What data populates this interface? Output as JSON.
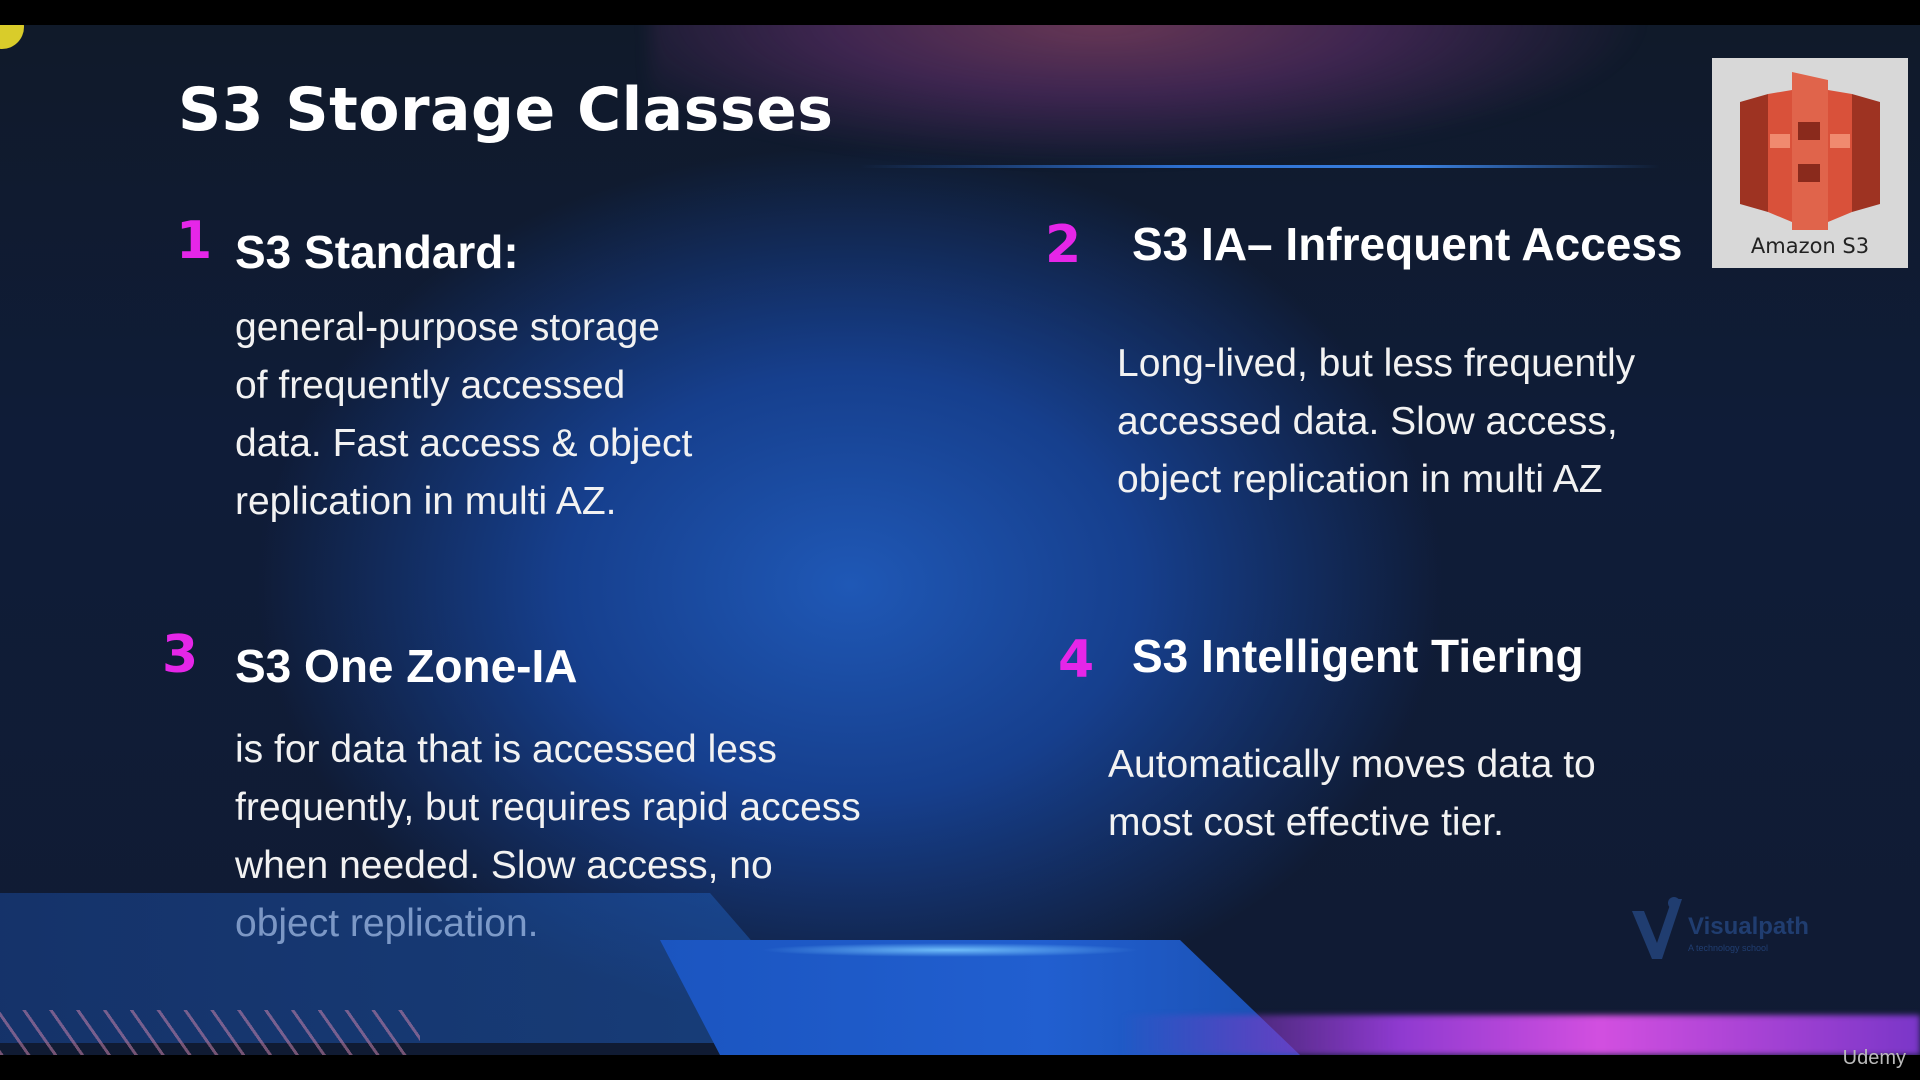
{
  "slide": {
    "title": "S3 Storage Classes",
    "logo": {
      "label": "Amazon S3",
      "icon": "amazon-s3-bucket-icon",
      "color": "#d9513a"
    },
    "cards": [
      {
        "number": "1",
        "heading": "S3 Standard:",
        "lines": [
          "general-purpose storage",
          "of frequently accessed",
          "data. Fast access & object",
          "replication in multi AZ."
        ]
      },
      {
        "number": "2",
        "heading": "S3 IA– Infrequent Access",
        "lines": [
          "Long-lived, but less frequently",
          "accessed data. Slow access,",
          "object replication in multi AZ"
        ]
      },
      {
        "number": "3",
        "heading": "S3 One Zone-IA",
        "lines": [
          "is for data that is accessed less",
          "frequently, but requires rapid access",
          "when needed. Slow access, no",
          "object replication."
        ]
      },
      {
        "number": "4",
        "heading": "S3 Intelligent Tiering",
        "lines": [
          "Automatically moves data to",
          "most cost effective tier."
        ]
      }
    ],
    "watermark": {
      "name": "Visualpath",
      "tagline": "A technology school"
    },
    "accent_color": "#e526e8"
  },
  "player": {
    "brand": "Udemy"
  }
}
